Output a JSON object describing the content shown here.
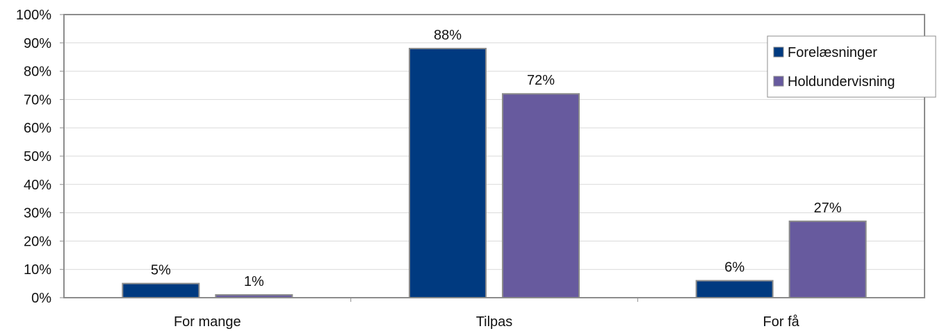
{
  "chart_data": {
    "type": "bar",
    "title": "",
    "xlabel": "",
    "ylabel": "",
    "categories": [
      "For mange",
      "Tilpas",
      "For få"
    ],
    "series": [
      {
        "name": "Forelæsninger",
        "values": [
          5,
          88,
          6
        ],
        "labels": [
          "5%",
          "88%",
          "6%"
        ],
        "color": "#003A80"
      },
      {
        "name": "Holdundervisning",
        "values": [
          1,
          72,
          27
        ],
        "labels": [
          "1%",
          "72%",
          "27%"
        ],
        "color": "#675A9E"
      }
    ],
    "ylim": [
      0,
      100
    ],
    "yticks": [
      0,
      10,
      20,
      30,
      40,
      50,
      60,
      70,
      80,
      90,
      100
    ],
    "ytick_labels": [
      "0%",
      "10%",
      "20%",
      "30%",
      "40%",
      "50%",
      "60%",
      "70%",
      "80%",
      "90%",
      "100%"
    ],
    "grid": true,
    "legend_position": "top-right",
    "colors": {
      "gridline": "#D9D9D9",
      "axis": "#8C8C8C",
      "bar_border": "#8C8C8C"
    }
  }
}
